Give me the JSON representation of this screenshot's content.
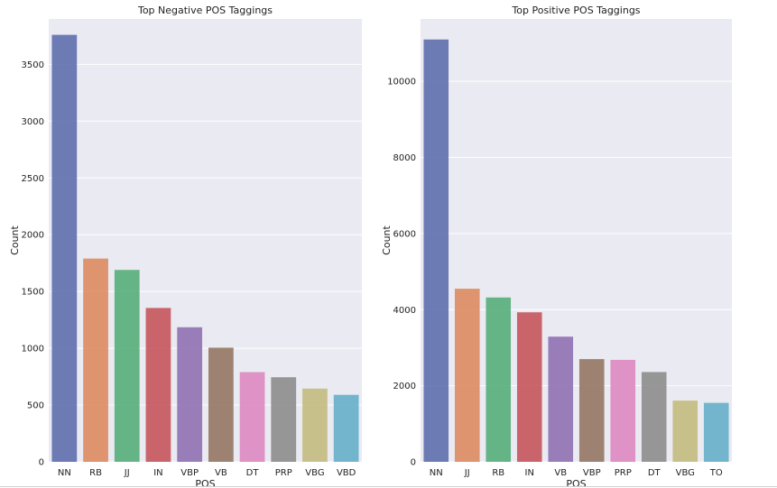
{
  "chart_data": [
    {
      "type": "bar",
      "title": "Top Negative POS Taggings",
      "xlabel": "POS",
      "ylabel": "Count",
      "categories": [
        "NN",
        "RB",
        "JJ",
        "IN",
        "VBP",
        "VB",
        "DT",
        "PRP",
        "VBG",
        "VBD"
      ],
      "values": [
        3760,
        1790,
        1690,
        1355,
        1185,
        1005,
        790,
        745,
        645,
        590
      ],
      "ylim": [
        0,
        3900
      ],
      "yticks": [
        0,
        500,
        1000,
        1500,
        2000,
        2500,
        3000,
        3500
      ],
      "grid": true,
      "legend": "none"
    },
    {
      "type": "bar",
      "title": "Top Positive POS Taggings",
      "xlabel": "POS",
      "ylabel": "Count",
      "categories": [
        "NN",
        "JJ",
        "RB",
        "IN",
        "VB",
        "VBP",
        "PRP",
        "DT",
        "VBG",
        "TO"
      ],
      "values": [
        11100,
        4550,
        4320,
        3930,
        3290,
        2700,
        2680,
        2360,
        1610,
        1550
      ],
      "ylim": [
        0,
        11640
      ],
      "yticks": [
        0,
        2000,
        4000,
        6000,
        8000,
        10000
      ],
      "grid": true,
      "legend": "none"
    }
  ],
  "colors": {
    "background": "#eaeaf2",
    "grid": "#ffffff",
    "bars": [
      "#5f6fae",
      "#dd8b5f",
      "#56ae7a",
      "#c6555c",
      "#8f71b3",
      "#957763",
      "#dd88c0",
      "#8d8d8d",
      "#c4bb80",
      "#66afc9"
    ]
  }
}
